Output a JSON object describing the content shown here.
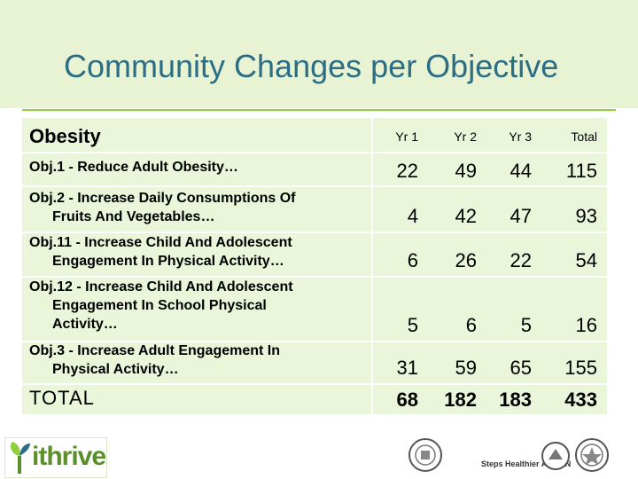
{
  "title": "Community Changes per Objective",
  "header": {
    "label": "Obesity",
    "columns": [
      "Yr 1",
      "Yr 2",
      "Yr 3",
      "Total"
    ]
  },
  "rows": [
    {
      "lines": [
        "Obj.1 - Reduce Adult Obesity…"
      ],
      "values": [
        "22",
        "49",
        "44",
        "115"
      ]
    },
    {
      "lines": [
        "Obj.2 - Increase Daily Consumptions Of",
        "Fruits And Vegetables…"
      ],
      "values": [
        "4",
        "42",
        "47",
        "93"
      ]
    },
    {
      "lines": [
        "Obj.11 - Increase Child And Adolescent",
        "Engagement In Physical Activity…"
      ],
      "values": [
        "6",
        "26",
        "22",
        "54"
      ]
    },
    {
      "lines": [
        "Obj.12 - Increase Child And Adolescent",
        "Engagement In School Physical",
        "Activity…"
      ],
      "values": [
        "5",
        "6",
        "5",
        "16"
      ]
    },
    {
      "lines": [
        "Obj.3 - Increase Adult Engagement In",
        "Physical Activity…"
      ],
      "values": [
        "31",
        "59",
        "65",
        "155"
      ]
    }
  ],
  "total": {
    "label": "TOTAL",
    "values": [
      "68",
      "182",
      "183",
      "433"
    ]
  },
  "footer": {
    "logo_text": "ithrive",
    "partner_text": "Steps Healthier AUSTIN"
  },
  "colors": {
    "title": "#2c6d86",
    "band": "#e7f3d3",
    "table": "#eaf5d9",
    "accent": "#8fcf3c",
    "logo": "#5a8f2a"
  }
}
